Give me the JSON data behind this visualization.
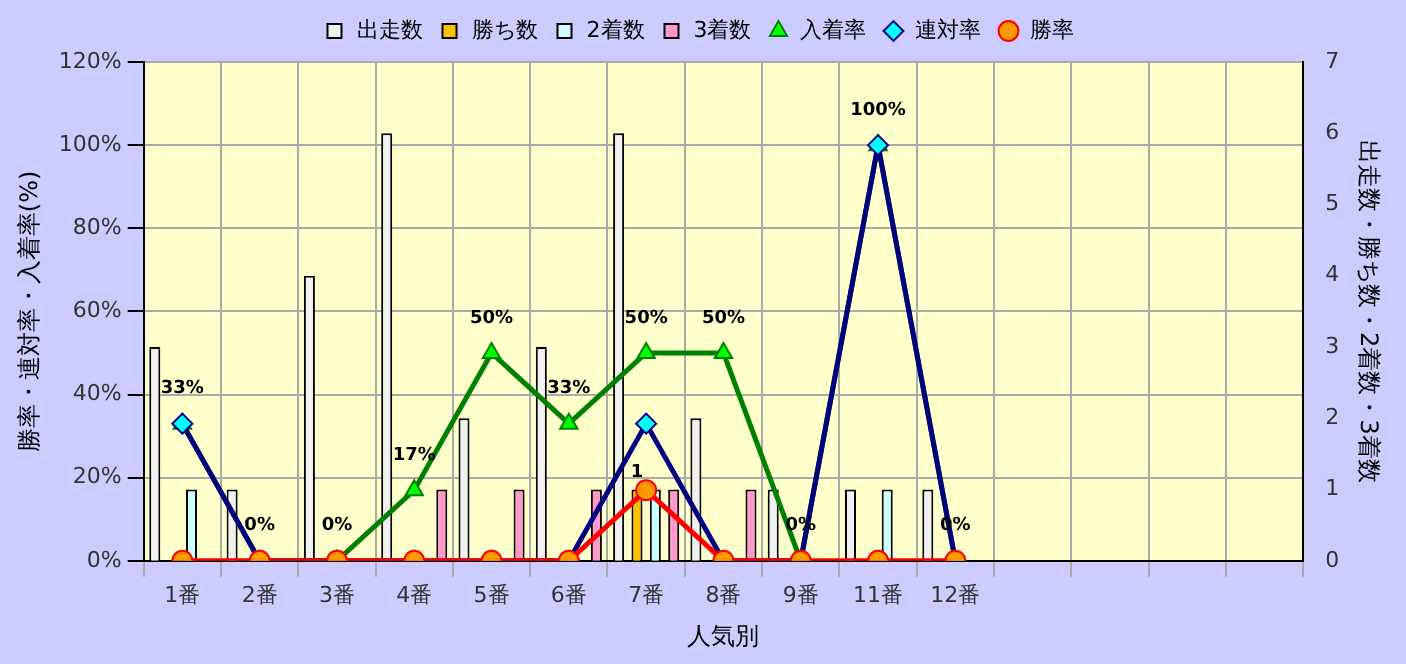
{
  "chart_data": {
    "type": "bar",
    "xlabel": "人気別",
    "ylabel": "勝率・連対率・入着率(%)",
    "y2label": "出走数・勝ち数・2着数・3着数",
    "categories": [
      "1番",
      "2番",
      "3番",
      "4番",
      "5番",
      "6番",
      "7番",
      "8番",
      "9番",
      "11番",
      "12番",
      null,
      null,
      null,
      null
    ],
    "series": [
      {
        "name": "出走数",
        "axis": "y2",
        "color": "#f0f0f0",
        "values": [
          3,
          1,
          4,
          6,
          2,
          3,
          6,
          2,
          1,
          1,
          1,
          null,
          null,
          null,
          null
        ]
      },
      {
        "name": "勝ち数",
        "axis": "y2",
        "color": "#ffc000",
        "values": [
          0,
          0,
          0,
          0,
          0,
          0,
          1,
          0,
          0,
          0,
          0,
          null,
          null,
          null,
          null
        ],
        "value_labels": [
          null,
          null,
          null,
          null,
          null,
          null,
          "1",
          null,
          null,
          null,
          null,
          null,
          null,
          null,
          null
        ]
      },
      {
        "name": "2着数",
        "axis": "y2",
        "color": "#ccffff",
        "values": [
          1,
          0,
          0,
          0,
          0,
          0,
          1,
          0,
          0,
          1,
          0,
          null,
          null,
          null,
          null
        ]
      },
      {
        "name": "3着数",
        "axis": "y2",
        "color": "#ff99cc",
        "values": [
          0,
          0,
          0,
          1,
          1,
          1,
          1,
          1,
          0,
          0,
          0,
          null,
          null,
          null,
          null
        ]
      },
      {
        "name": "入着率",
        "type": "line",
        "axis": "y",
        "color": "#008000",
        "marker": "triangle",
        "values": [
          33,
          0,
          0,
          17,
          50,
          33,
          50,
          50,
          0,
          100,
          0,
          null,
          null,
          null,
          null
        ],
        "value_labels": [
          "33%",
          "0%",
          "0%",
          "17%",
          "50%",
          "33%",
          "50%",
          "50%",
          "0%",
          "100%",
          "0%",
          null,
          null,
          null,
          null
        ]
      },
      {
        "name": "連対率",
        "type": "line",
        "axis": "y",
        "color": "#000080",
        "marker": "diamond",
        "values": [
          33,
          0,
          0,
          0,
          0,
          0,
          33,
          0,
          0,
          100,
          0,
          null,
          null,
          null,
          null
        ]
      },
      {
        "name": "勝率",
        "type": "line",
        "axis": "y",
        "color": "#ff0000",
        "marker": "circle",
        "values": [
          0,
          0,
          0,
          0,
          0,
          0,
          17,
          0,
          0,
          0,
          0,
          null,
          null,
          null,
          null
        ]
      }
    ],
    "ylim": [
      0,
      120
    ],
    "yticks": [
      {
        "value": 0,
        "label": "0%"
      },
      {
        "value": 20,
        "label": "20%"
      },
      {
        "value": 40,
        "label": "40%"
      },
      {
        "value": 60,
        "label": "60%"
      },
      {
        "value": 80,
        "label": "80%"
      },
      {
        "value": 100,
        "label": "100%"
      },
      {
        "value": 120,
        "label": "120%"
      }
    ],
    "y2lim": [
      0,
      7
    ],
    "y2ticks": [
      0,
      1,
      2,
      3,
      4,
      5,
      6,
      7
    ],
    "grid": true,
    "legend": "top"
  }
}
